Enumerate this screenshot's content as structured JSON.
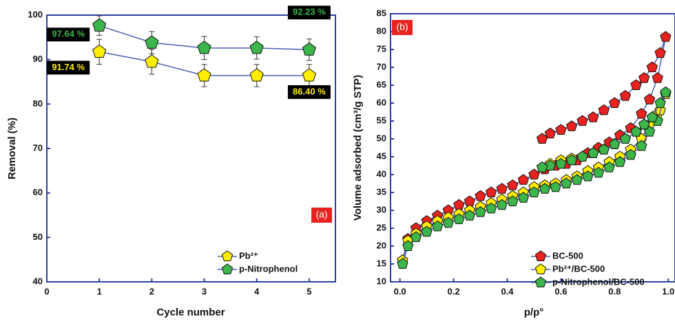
{
  "chart_data": [
    {
      "type": "line",
      "panel_label": "(a)",
      "x_label": "Cycle number",
      "y_label": "Removal (%)",
      "x": [
        1,
        2,
        3,
        4,
        5
      ],
      "xlim": [
        0,
        5.5
      ],
      "xticks": [
        0,
        1,
        2,
        3,
        4,
        5
      ],
      "ylim": [
        40,
        100
      ],
      "yticks": [
        40,
        50,
        60,
        70,
        80,
        90,
        100
      ],
      "legend": "lower right",
      "line_color": "#4a5fb0",
      "series": [
        {
          "name": "Pb²⁺",
          "color": "#ffee00",
          "values": [
            91.74,
            89.5,
            86.4,
            86.4,
            86.4
          ],
          "errors": [
            2.8,
            2.8,
            2.5,
            2.5,
            2.5
          ],
          "value_labels": [
            "91.74 %",
            null,
            null,
            null,
            "86.40 %"
          ]
        },
        {
          "name": "p-Nitrophenol",
          "color": "#3cb54a",
          "values": [
            97.64,
            93.8,
            92.6,
            92.6,
            92.23
          ],
          "errors": [
            2.2,
            2.5,
            2.6,
            2.5,
            2.4
          ],
          "value_labels": [
            "97.64 %",
            null,
            null,
            null,
            "92.23 %"
          ]
        }
      ]
    },
    {
      "type": "line",
      "panel_label": "(b)",
      "x_label": "p/p°",
      "y_label": "Volume adsorbed (cm³/g STP)",
      "xlim": [
        -0.035,
        1.025
      ],
      "xticks": [
        {
          "value": 0,
          "label": "0.0"
        },
        0.2,
        0.4,
        0.6,
        0.8,
        {
          "value": 1,
          "label": "1.0"
        }
      ],
      "ylim": [
        10,
        85
      ],
      "yticks": [
        10,
        15,
        20,
        25,
        30,
        35,
        40,
        45,
        50,
        55,
        60,
        65,
        70,
        75,
        80,
        85
      ],
      "legend": "lower right",
      "line_color": "#4a5fb0",
      "series": [
        {
          "name": "BC-500",
          "color": "#e8231f",
          "x": [
            0.01,
            0.03,
            0.06,
            0.1,
            0.14,
            0.18,
            0.22,
            0.26,
            0.3,
            0.34,
            0.38,
            0.42,
            0.46,
            0.5,
            0.54,
            0.58,
            0.62,
            0.66,
            0.7,
            0.74,
            0.78,
            0.82,
            0.86,
            0.9,
            0.93,
            0.96,
            0.99,
            0.97,
            0.94,
            0.91,
            0.88,
            0.84,
            0.8,
            0.76,
            0.72,
            0.68,
            0.64,
            0.6,
            0.56,
            0.53
          ],
          "values": [
            16,
            22,
            25,
            27,
            28.5,
            30,
            31.5,
            32.5,
            34,
            35,
            36,
            37,
            38.5,
            40,
            41.5,
            42.5,
            43,
            44,
            46,
            47.5,
            49,
            51,
            53,
            57,
            61,
            67,
            78.5,
            74,
            70,
            67,
            65,
            62,
            60,
            58,
            56,
            55,
            53.5,
            52.5,
            51.5,
            50
          ]
        },
        {
          "name": "Pb²⁺/BC-500",
          "color": "#ffee00",
          "x": [
            0.01,
            0.03,
            0.06,
            0.1,
            0.14,
            0.18,
            0.22,
            0.26,
            0.3,
            0.34,
            0.38,
            0.42,
            0.46,
            0.5,
            0.54,
            0.58,
            0.62,
            0.66,
            0.7,
            0.74,
            0.78,
            0.82,
            0.86,
            0.9,
            0.93,
            0.96,
            0.99,
            0.97,
            0.94,
            0.91,
            0.88,
            0.84,
            0.8,
            0.76,
            0.72,
            0.68,
            0.64,
            0.6,
            0.56,
            0.53
          ],
          "values": [
            16,
            21.5,
            23.5,
            25.5,
            27,
            28,
            29,
            30,
            31,
            32,
            33,
            34,
            35,
            36.5,
            37,
            37.5,
            38.5,
            39.5,
            41,
            42,
            43.5,
            45,
            47,
            50,
            54,
            57,
            62.5,
            58,
            56,
            54,
            52,
            50,
            48.5,
            47,
            46,
            45,
            44.5,
            44,
            43,
            42
          ]
        },
        {
          "name": "p-Nitrophenol/BC-500",
          "color": "#3cb54a",
          "x": [
            0.01,
            0.03,
            0.06,
            0.1,
            0.14,
            0.18,
            0.22,
            0.26,
            0.3,
            0.34,
            0.38,
            0.42,
            0.46,
            0.5,
            0.54,
            0.58,
            0.62,
            0.66,
            0.7,
            0.74,
            0.78,
            0.82,
            0.86,
            0.9,
            0.93,
            0.96,
            0.99,
            0.97,
            0.94,
            0.91,
            0.88,
            0.84,
            0.8,
            0.76,
            0.72,
            0.68,
            0.64,
            0.6,
            0.56,
            0.53
          ],
          "values": [
            15,
            20,
            22.5,
            24,
            25.5,
            26.5,
            27.5,
            28.5,
            29.5,
            30.5,
            31.5,
            32.5,
            33.5,
            35,
            36,
            36.5,
            37.5,
            38.5,
            39.5,
            40.5,
            42,
            43.5,
            45.5,
            48,
            52,
            55,
            63,
            60,
            56,
            54,
            52,
            50,
            48.5,
            47,
            46,
            45,
            44,
            43,
            42.5,
            42
          ]
        }
      ]
    }
  ]
}
